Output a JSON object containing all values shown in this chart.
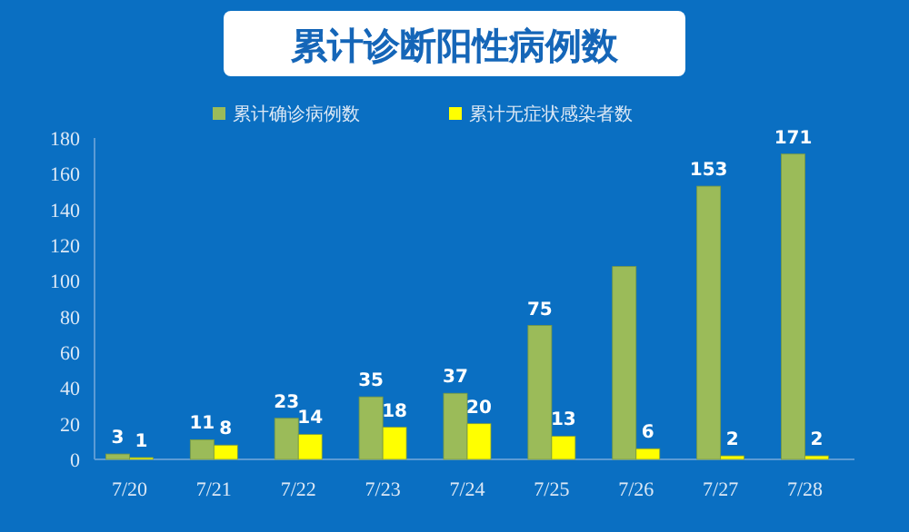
{
  "chart_data": {
    "type": "bar",
    "title": "累计诊断阳性病例数",
    "categories": [
      "7/20",
      "7/21",
      "7/22",
      "7/23",
      "7/24",
      "7/25",
      "7/26",
      "7/27",
      "7/28"
    ],
    "series": [
      {
        "name": "累计确诊病例数",
        "color": "#9bbb59",
        "values": [
          3,
          11,
          23,
          35,
          37,
          75,
          108,
          153,
          171
        ],
        "value_labels": [
          "3",
          "11",
          "23",
          "35",
          "37",
          "75",
          null,
          "153",
          "171"
        ]
      },
      {
        "name": "累计无症状感染者数",
        "color": "#ffff00",
        "values": [
          1,
          8,
          14,
          18,
          20,
          13,
          6,
          2,
          2
        ],
        "data_labels": true
      }
    ],
    "ylim": [
      0,
      180
    ],
    "yticks": [
      0,
      20,
      40,
      60,
      80,
      100,
      120,
      140,
      160,
      180
    ],
    "grid": false,
    "legend": "top"
  }
}
